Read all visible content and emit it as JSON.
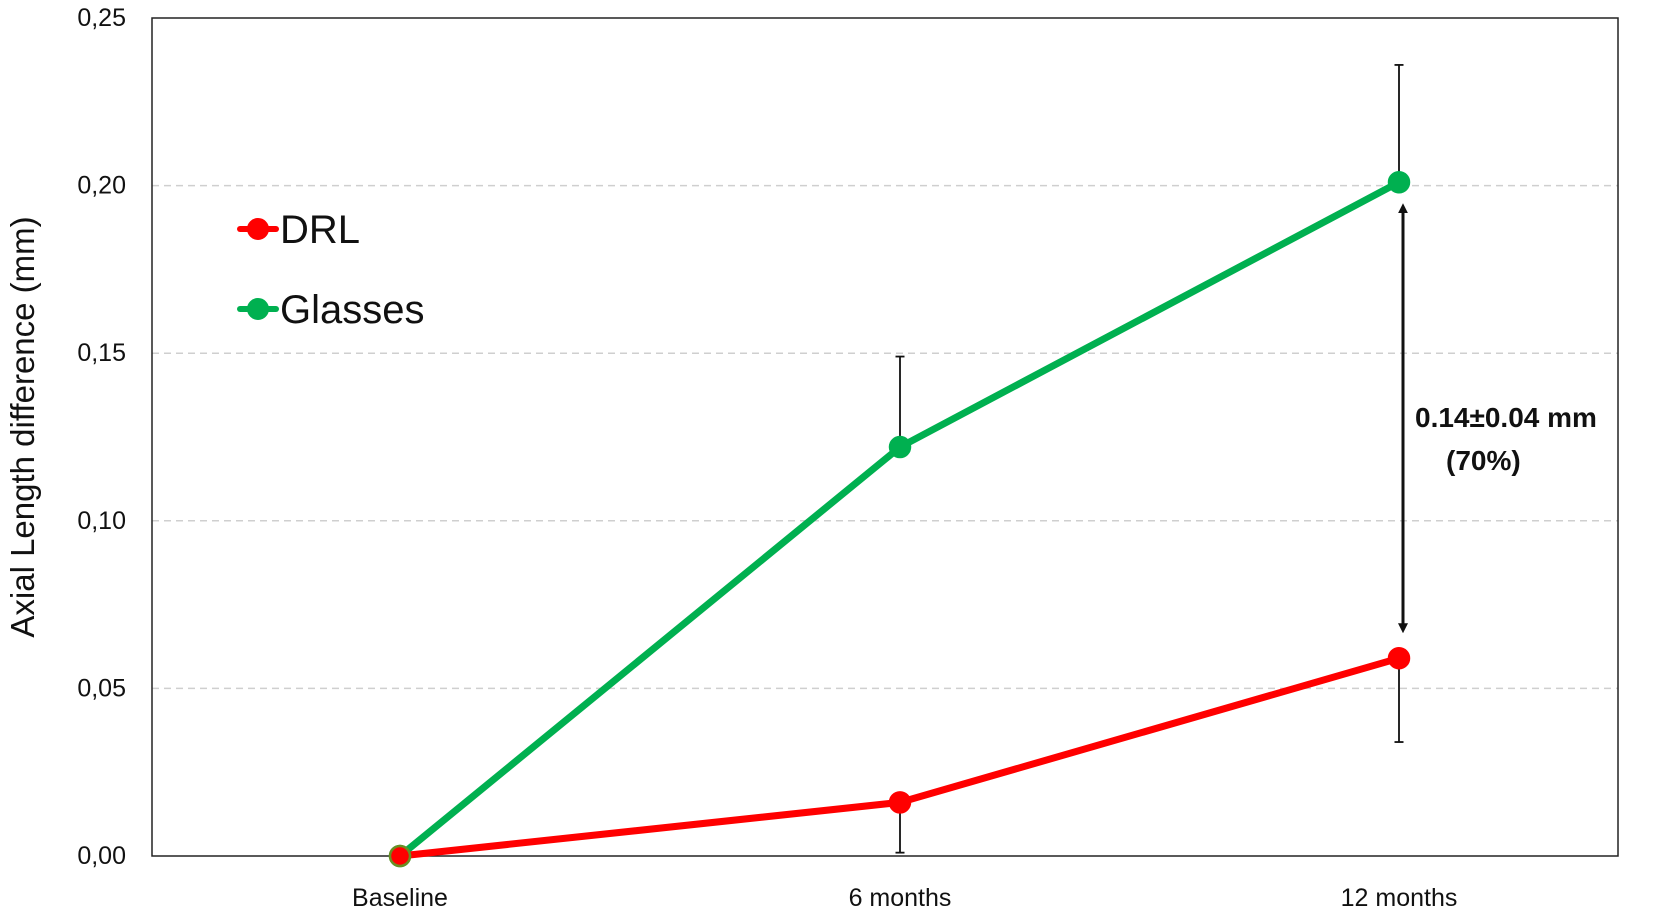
{
  "chart_data": {
    "type": "line",
    "categories": [
      "Baseline",
      "6 months",
      "12 months"
    ],
    "ylabel": "Axial Length difference (mm)",
    "xlabel": "",
    "ylim": [
      0,
      0.25
    ],
    "ytick_values": [
      0,
      0.05,
      0.1,
      0.15,
      0.2,
      0.25
    ],
    "ytick_labels": [
      "0,00",
      "0,05",
      "0,10",
      "0,15",
      "0,20",
      "0,25"
    ],
    "grid": "horizontal-dashed",
    "legend_position": "top-left",
    "series": [
      {
        "name": "DRL",
        "color": "#ff0000",
        "values": [
          0,
          0.016,
          0.059
        ],
        "error_upper": [
          0,
          0,
          0
        ],
        "error_lower": [
          0,
          0.015,
          0.025
        ]
      },
      {
        "name": "Glasses",
        "color": "#00b050",
        "values": [
          0,
          0.122,
          0.201
        ],
        "error_upper": [
          0,
          0.027,
          0.035
        ],
        "error_lower": [
          0,
          0,
          0
        ]
      }
    ],
    "annotation": {
      "line1": "0.14±0.04 mm",
      "line2": "(70%)",
      "category_index": 2,
      "from_value": 0.059,
      "to_value": 0.201
    }
  }
}
